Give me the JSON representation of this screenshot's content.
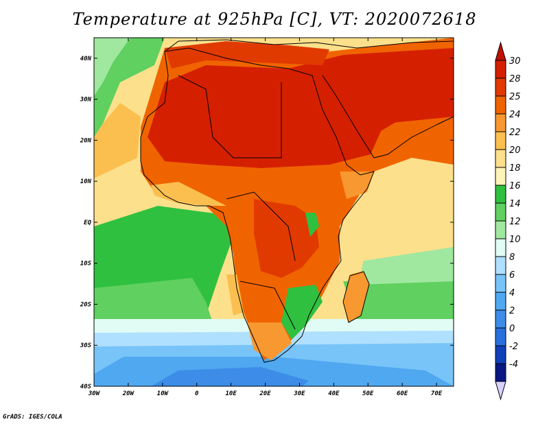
{
  "title": "Temperature at 925hPa [C], VT: 2020072618",
  "credit": "GrADS: IGES/COLA",
  "map": {
    "lon_range": [
      -30,
      75
    ],
    "lat_range": [
      -40,
      45
    ],
    "lon_ticks": [
      {
        "value": -30,
        "label": "30W"
      },
      {
        "value": -20,
        "label": "20W"
      },
      {
        "value": -10,
        "label": "10W"
      },
      {
        "value": 0,
        "label": "0"
      },
      {
        "value": 10,
        "label": "10E"
      },
      {
        "value": 20,
        "label": "20E"
      },
      {
        "value": 30,
        "label": "30E"
      },
      {
        "value": 40,
        "label": "40E"
      },
      {
        "value": 50,
        "label": "50E"
      },
      {
        "value": 60,
        "label": "60E"
      },
      {
        "value": 70,
        "label": "70E"
      }
    ],
    "lat_ticks": [
      {
        "value": 40,
        "label": "40N"
      },
      {
        "value": 30,
        "label": "30N"
      },
      {
        "value": 20,
        "label": "20N"
      },
      {
        "value": 10,
        "label": "10N"
      },
      {
        "value": 0,
        "label": "EQ"
      },
      {
        "value": -10,
        "label": "10S"
      },
      {
        "value": -20,
        "label": "20S"
      },
      {
        "value": -30,
        "label": "30S"
      },
      {
        "value": -40,
        "label": "40S"
      }
    ]
  },
  "colorbar": {
    "levels": [
      "30",
      "28",
      "25",
      "24",
      "22",
      "20",
      "18",
      "16",
      "14",
      "12",
      "10",
      "8",
      "6",
      "4",
      "2",
      "0",
      "-2",
      "-4"
    ],
    "colors": [
      "#d42000",
      "#e03a00",
      "#f06400",
      "#f89830",
      "#fbbf50",
      "#fde08c",
      "#fff4b8",
      "#30c040",
      "#60d060",
      "#a0e8a0",
      "#e0fcf4",
      "#b0e0ff",
      "#78c4f8",
      "#50a8f0",
      "#3c8ce8",
      "#2870dc",
      "#1040b8",
      "#081880"
    ],
    "top_cap_color": "#c01000",
    "bottom_cap_color": "#d8d0ff"
  }
}
